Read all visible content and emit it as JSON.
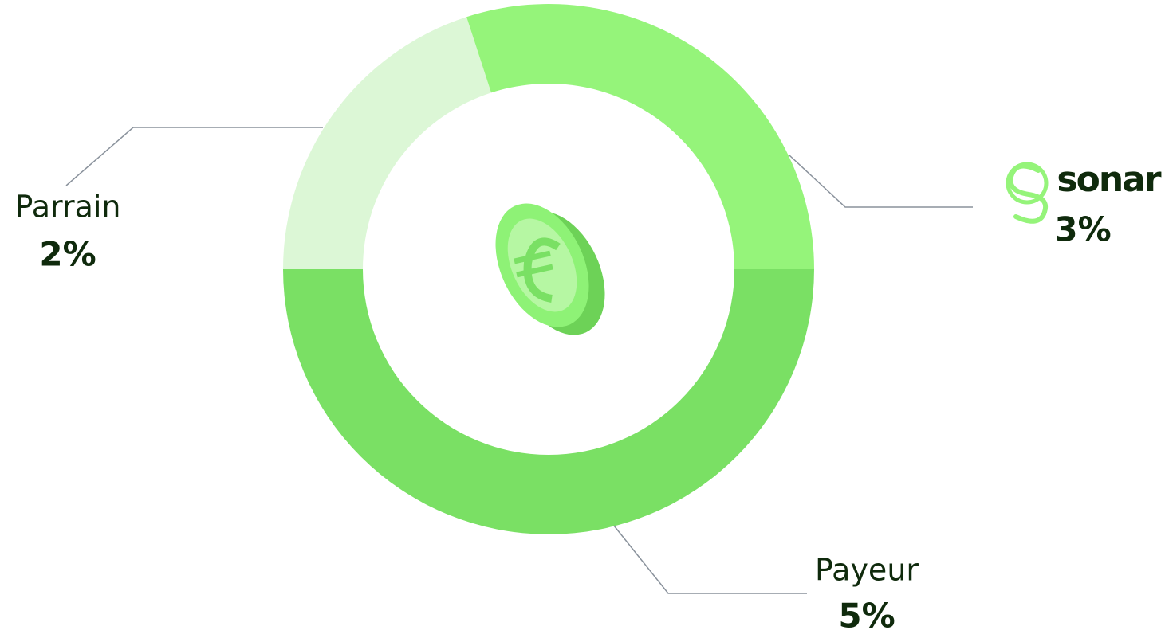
{
  "chart_data": {
    "type": "donut",
    "categories": [
      "Payeur",
      "Parrain",
      "sonar"
    ],
    "values": [
      5,
      2,
      3
    ],
    "value_labels": [
      "5%",
      "2%",
      "3%"
    ],
    "colors": [
      "#7ae064",
      "#dcf7d6",
      "#95f47a"
    ]
  }
}
